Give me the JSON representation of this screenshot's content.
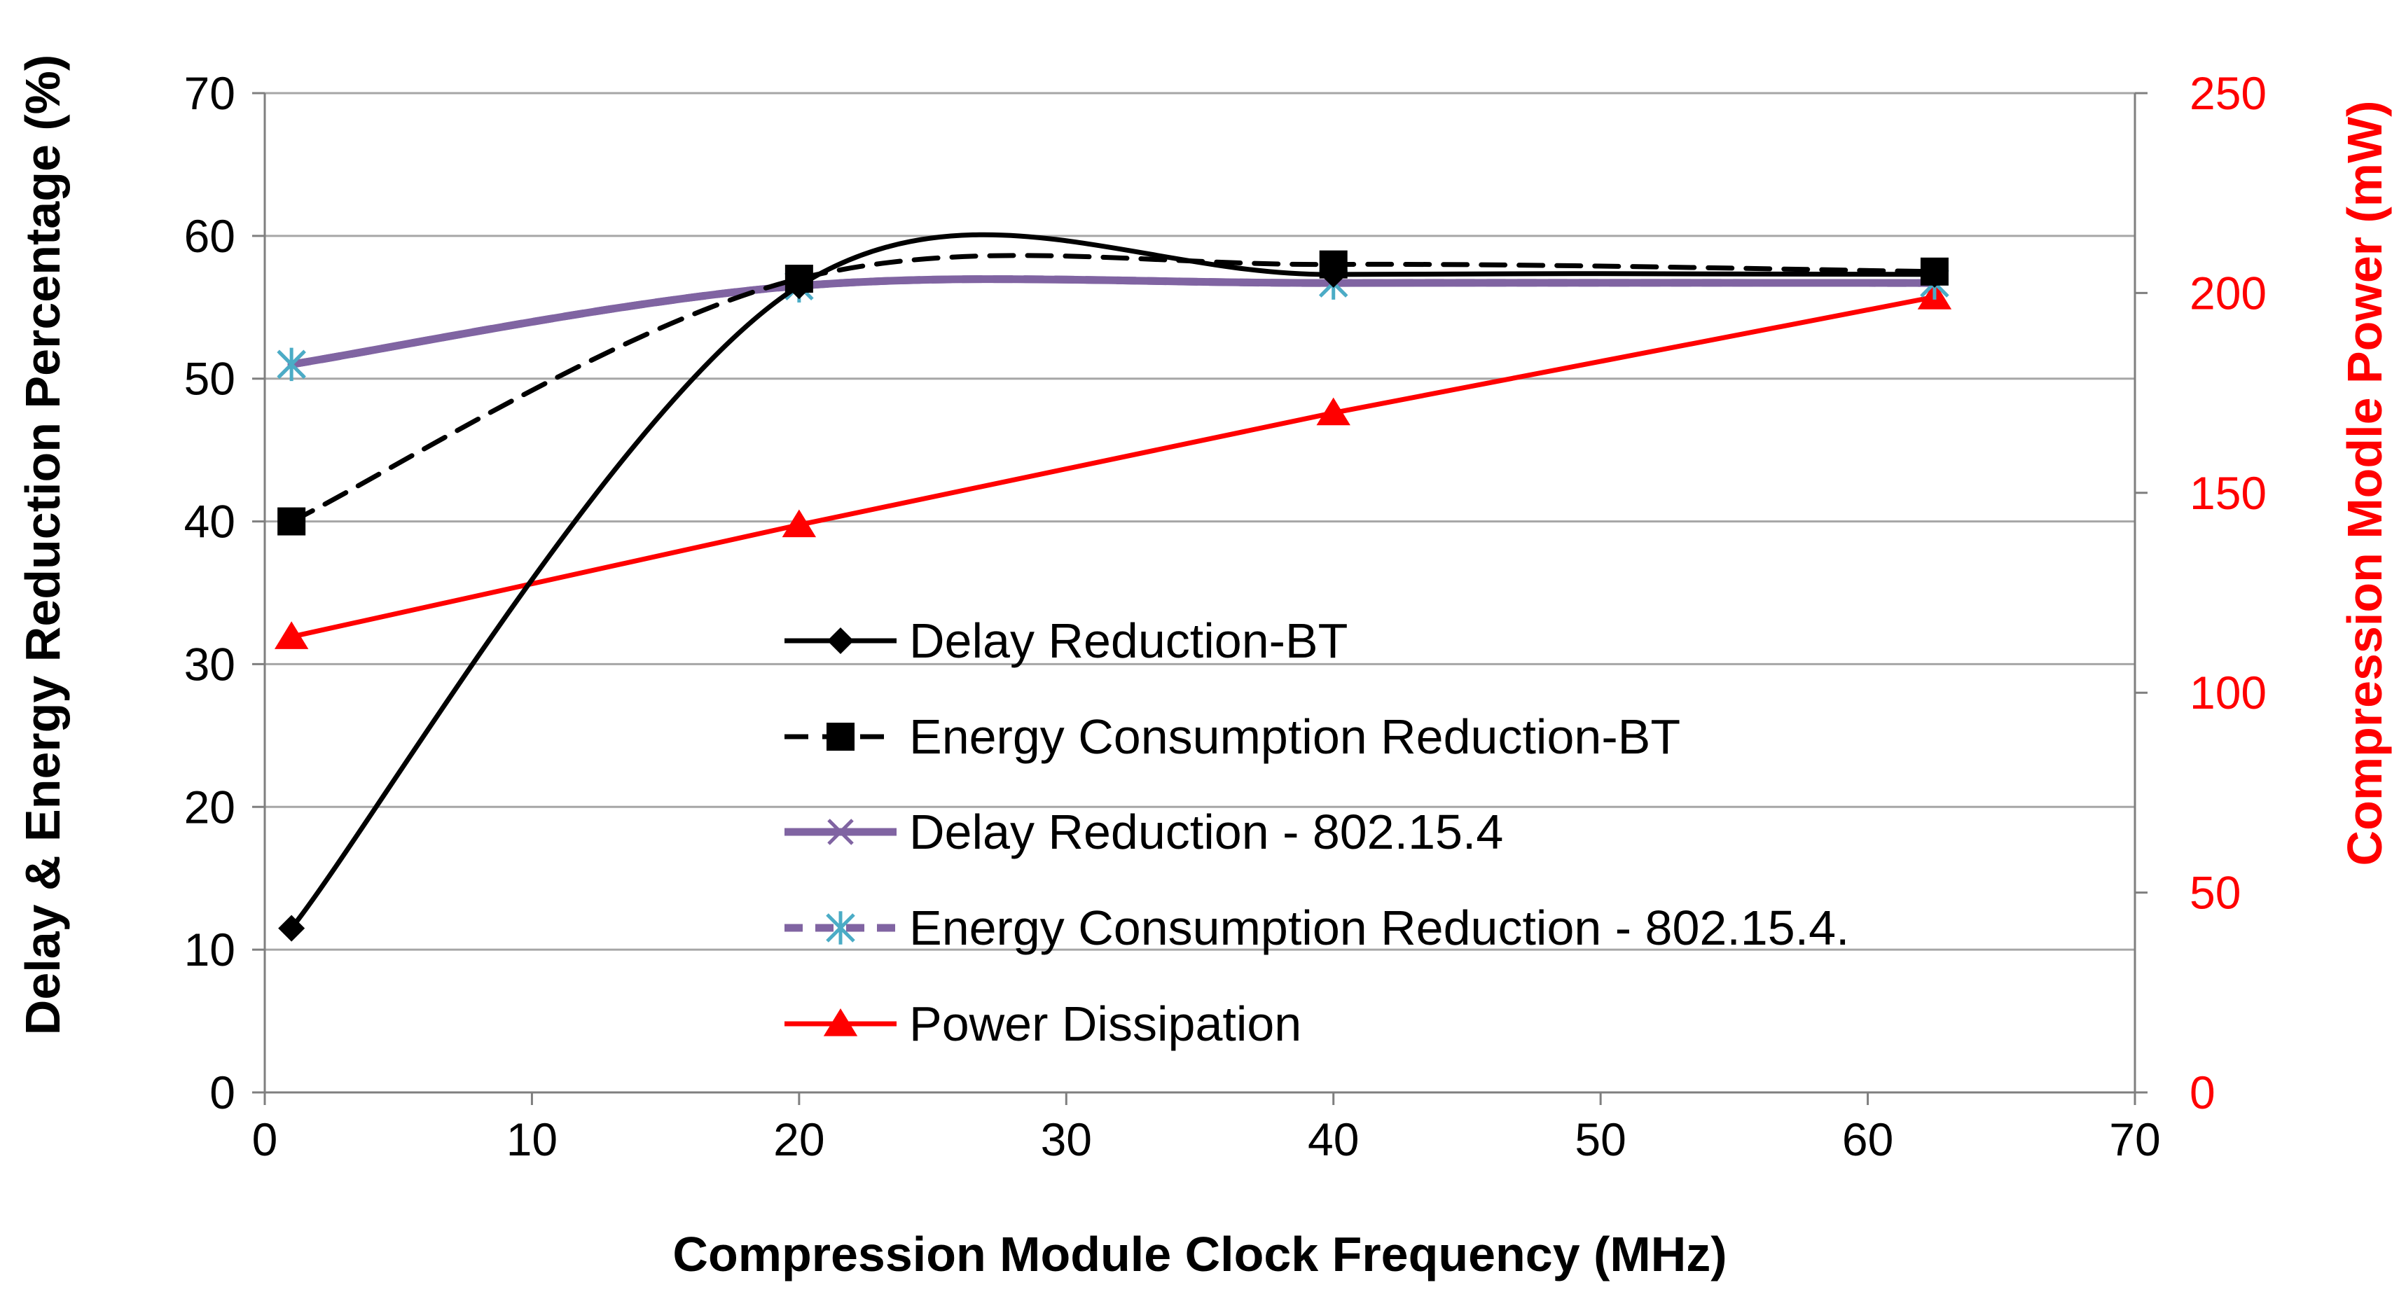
{
  "chart_data": {
    "type": "line",
    "title": "",
    "xlabel": "Compression Module Clock Frequency (MHz)",
    "ylabel": "Delay & Energy Reduction Percentage (%)",
    "y2label": "Compression Modle Power (mW)",
    "xlim": [
      0,
      70
    ],
    "ylim": [
      0,
      70
    ],
    "y2lim": [
      0,
      250
    ],
    "xticks": [
      "0",
      "10",
      "20",
      "30",
      "40",
      "50",
      "60",
      "70"
    ],
    "yticks": [
      "0",
      "10",
      "20",
      "30",
      "40",
      "50",
      "60",
      "70"
    ],
    "y2ticks": [
      "0",
      "50",
      "100",
      "150",
      "200",
      "250"
    ],
    "grid": true,
    "legend_position": "center",
    "colors": {
      "black": "#000000",
      "purple": "#8064a2",
      "cyan": "#4bacc6",
      "red": "#ff0000",
      "grid": "#a6a6a6",
      "axis": "#7f7f7f"
    },
    "series": [
      {
        "name": "Delay Reduction-BT",
        "axis": "left",
        "x": [
          1,
          20,
          40,
          62.5
        ],
        "values": [
          11.5,
          56.5,
          57.3,
          57.3
        ]
      },
      {
        "name": "Energy Consumption Reduction-BT",
        "axis": "left",
        "x": [
          1,
          20,
          40,
          62.5
        ],
        "values": [
          40,
          57,
          58,
          57.5
        ]
      },
      {
        "name": "Delay Reduction - 802.15.4",
        "axis": "left",
        "x": [
          1,
          20,
          40,
          62.5
        ],
        "values": [
          51,
          56.5,
          56.7,
          56.7
        ]
      },
      {
        "name": "Energy Consumption Reduction - 802.15.4.",
        "axis": "left",
        "x": [
          1,
          20,
          40,
          62.5
        ],
        "values": [
          51,
          56.5,
          56.7,
          56.7
        ]
      },
      {
        "name": "Power Dissipation",
        "axis": "right",
        "x": [
          1,
          20,
          40,
          62.5
        ],
        "values": [
          114,
          142,
          170,
          199
        ]
      }
    ]
  }
}
